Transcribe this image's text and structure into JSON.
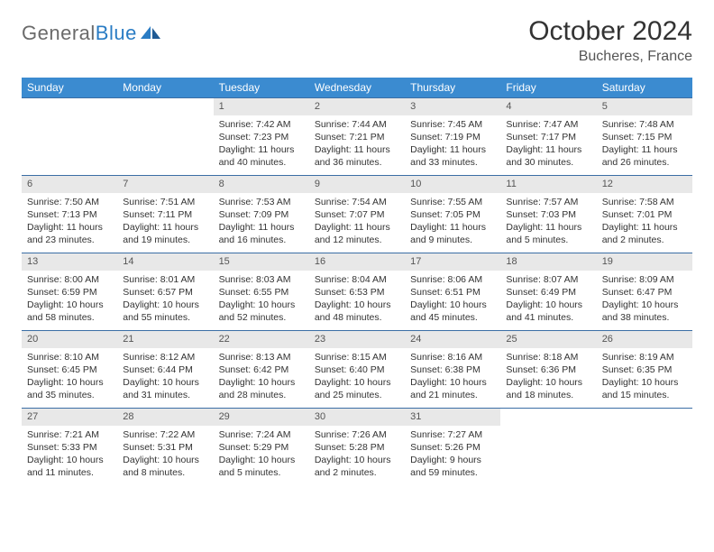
{
  "logo": {
    "general": "General",
    "blue": "Blue"
  },
  "title": "October 2024",
  "location": "Bucheres, France",
  "colors": {
    "header_bg": "#3b8bd0",
    "header_text": "#ffffff",
    "row_border": "#3b6ea5",
    "daynum_bg": "#e8e8e8",
    "accent_blue": "#2a7cc4",
    "logo_gray": "#6a6a6a"
  },
  "weekdays": [
    "Sunday",
    "Monday",
    "Tuesday",
    "Wednesday",
    "Thursday",
    "Friday",
    "Saturday"
  ],
  "weeks": [
    [
      {
        "empty": true
      },
      {
        "empty": true
      },
      {
        "num": "1",
        "sunrise": "Sunrise: 7:42 AM",
        "sunset": "Sunset: 7:23 PM",
        "daylight1": "Daylight: 11 hours",
        "daylight2": "and 40 minutes."
      },
      {
        "num": "2",
        "sunrise": "Sunrise: 7:44 AM",
        "sunset": "Sunset: 7:21 PM",
        "daylight1": "Daylight: 11 hours",
        "daylight2": "and 36 minutes."
      },
      {
        "num": "3",
        "sunrise": "Sunrise: 7:45 AM",
        "sunset": "Sunset: 7:19 PM",
        "daylight1": "Daylight: 11 hours",
        "daylight2": "and 33 minutes."
      },
      {
        "num": "4",
        "sunrise": "Sunrise: 7:47 AM",
        "sunset": "Sunset: 7:17 PM",
        "daylight1": "Daylight: 11 hours",
        "daylight2": "and 30 minutes."
      },
      {
        "num": "5",
        "sunrise": "Sunrise: 7:48 AM",
        "sunset": "Sunset: 7:15 PM",
        "daylight1": "Daylight: 11 hours",
        "daylight2": "and 26 minutes."
      }
    ],
    [
      {
        "num": "6",
        "sunrise": "Sunrise: 7:50 AM",
        "sunset": "Sunset: 7:13 PM",
        "daylight1": "Daylight: 11 hours",
        "daylight2": "and 23 minutes."
      },
      {
        "num": "7",
        "sunrise": "Sunrise: 7:51 AM",
        "sunset": "Sunset: 7:11 PM",
        "daylight1": "Daylight: 11 hours",
        "daylight2": "and 19 minutes."
      },
      {
        "num": "8",
        "sunrise": "Sunrise: 7:53 AM",
        "sunset": "Sunset: 7:09 PM",
        "daylight1": "Daylight: 11 hours",
        "daylight2": "and 16 minutes."
      },
      {
        "num": "9",
        "sunrise": "Sunrise: 7:54 AM",
        "sunset": "Sunset: 7:07 PM",
        "daylight1": "Daylight: 11 hours",
        "daylight2": "and 12 minutes."
      },
      {
        "num": "10",
        "sunrise": "Sunrise: 7:55 AM",
        "sunset": "Sunset: 7:05 PM",
        "daylight1": "Daylight: 11 hours",
        "daylight2": "and 9 minutes."
      },
      {
        "num": "11",
        "sunrise": "Sunrise: 7:57 AM",
        "sunset": "Sunset: 7:03 PM",
        "daylight1": "Daylight: 11 hours",
        "daylight2": "and 5 minutes."
      },
      {
        "num": "12",
        "sunrise": "Sunrise: 7:58 AM",
        "sunset": "Sunset: 7:01 PM",
        "daylight1": "Daylight: 11 hours",
        "daylight2": "and 2 minutes."
      }
    ],
    [
      {
        "num": "13",
        "sunrise": "Sunrise: 8:00 AM",
        "sunset": "Sunset: 6:59 PM",
        "daylight1": "Daylight: 10 hours",
        "daylight2": "and 58 minutes."
      },
      {
        "num": "14",
        "sunrise": "Sunrise: 8:01 AM",
        "sunset": "Sunset: 6:57 PM",
        "daylight1": "Daylight: 10 hours",
        "daylight2": "and 55 minutes."
      },
      {
        "num": "15",
        "sunrise": "Sunrise: 8:03 AM",
        "sunset": "Sunset: 6:55 PM",
        "daylight1": "Daylight: 10 hours",
        "daylight2": "and 52 minutes."
      },
      {
        "num": "16",
        "sunrise": "Sunrise: 8:04 AM",
        "sunset": "Sunset: 6:53 PM",
        "daylight1": "Daylight: 10 hours",
        "daylight2": "and 48 minutes."
      },
      {
        "num": "17",
        "sunrise": "Sunrise: 8:06 AM",
        "sunset": "Sunset: 6:51 PM",
        "daylight1": "Daylight: 10 hours",
        "daylight2": "and 45 minutes."
      },
      {
        "num": "18",
        "sunrise": "Sunrise: 8:07 AM",
        "sunset": "Sunset: 6:49 PM",
        "daylight1": "Daylight: 10 hours",
        "daylight2": "and 41 minutes."
      },
      {
        "num": "19",
        "sunrise": "Sunrise: 8:09 AM",
        "sunset": "Sunset: 6:47 PM",
        "daylight1": "Daylight: 10 hours",
        "daylight2": "and 38 minutes."
      }
    ],
    [
      {
        "num": "20",
        "sunrise": "Sunrise: 8:10 AM",
        "sunset": "Sunset: 6:45 PM",
        "daylight1": "Daylight: 10 hours",
        "daylight2": "and 35 minutes."
      },
      {
        "num": "21",
        "sunrise": "Sunrise: 8:12 AM",
        "sunset": "Sunset: 6:44 PM",
        "daylight1": "Daylight: 10 hours",
        "daylight2": "and 31 minutes."
      },
      {
        "num": "22",
        "sunrise": "Sunrise: 8:13 AM",
        "sunset": "Sunset: 6:42 PM",
        "daylight1": "Daylight: 10 hours",
        "daylight2": "and 28 minutes."
      },
      {
        "num": "23",
        "sunrise": "Sunrise: 8:15 AM",
        "sunset": "Sunset: 6:40 PM",
        "daylight1": "Daylight: 10 hours",
        "daylight2": "and 25 minutes."
      },
      {
        "num": "24",
        "sunrise": "Sunrise: 8:16 AM",
        "sunset": "Sunset: 6:38 PM",
        "daylight1": "Daylight: 10 hours",
        "daylight2": "and 21 minutes."
      },
      {
        "num": "25",
        "sunrise": "Sunrise: 8:18 AM",
        "sunset": "Sunset: 6:36 PM",
        "daylight1": "Daylight: 10 hours",
        "daylight2": "and 18 minutes."
      },
      {
        "num": "26",
        "sunrise": "Sunrise: 8:19 AM",
        "sunset": "Sunset: 6:35 PM",
        "daylight1": "Daylight: 10 hours",
        "daylight2": "and 15 minutes."
      }
    ],
    [
      {
        "num": "27",
        "sunrise": "Sunrise: 7:21 AM",
        "sunset": "Sunset: 5:33 PM",
        "daylight1": "Daylight: 10 hours",
        "daylight2": "and 11 minutes."
      },
      {
        "num": "28",
        "sunrise": "Sunrise: 7:22 AM",
        "sunset": "Sunset: 5:31 PM",
        "daylight1": "Daylight: 10 hours",
        "daylight2": "and 8 minutes."
      },
      {
        "num": "29",
        "sunrise": "Sunrise: 7:24 AM",
        "sunset": "Sunset: 5:29 PM",
        "daylight1": "Daylight: 10 hours",
        "daylight2": "and 5 minutes."
      },
      {
        "num": "30",
        "sunrise": "Sunrise: 7:26 AM",
        "sunset": "Sunset: 5:28 PM",
        "daylight1": "Daylight: 10 hours",
        "daylight2": "and 2 minutes."
      },
      {
        "num": "31",
        "sunrise": "Sunrise: 7:27 AM",
        "sunset": "Sunset: 5:26 PM",
        "daylight1": "Daylight: 9 hours",
        "daylight2": "and 59 minutes."
      },
      {
        "empty": true
      },
      {
        "empty": true
      }
    ]
  ]
}
